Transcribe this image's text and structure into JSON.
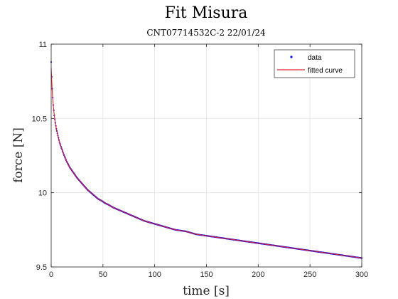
{
  "chart_data": {
    "type": "line",
    "title": "Fit Misura",
    "subtitle": "CNT07714532C-2 22/01/24",
    "xlabel": "time [s]",
    "ylabel": "force [N]",
    "xlim": [
      0,
      300
    ],
    "ylim": [
      9.5,
      11
    ],
    "xticks": [
      0,
      50,
      100,
      150,
      200,
      250,
      300
    ],
    "xtick_labels": [
      "0",
      "50",
      "100",
      "150",
      "200",
      "250",
      "300"
    ],
    "yticks": [
      9.5,
      10,
      10.5,
      11
    ],
    "ytick_labels": [
      "9.5",
      "10",
      "10.5",
      "11"
    ],
    "grid": true,
    "legend_position": "top-right",
    "series": [
      {
        "name": "data",
        "style": "markers",
        "color": "#0000ff",
        "x": [
          0,
          0.5,
          1,
          1.5,
          2,
          3,
          4,
          5,
          6,
          8,
          10,
          12,
          15,
          18,
          20,
          25,
          30,
          35,
          40,
          45,
          50,
          52,
          55,
          60,
          70,
          80,
          90,
          100,
          110,
          120,
          130,
          135,
          140,
          150,
          160,
          170,
          180,
          190,
          200,
          210,
          220,
          230,
          240,
          250,
          260,
          270,
          280,
          290,
          300
        ],
        "y": [
          10.88,
          10.78,
          10.7,
          10.64,
          10.59,
          10.52,
          10.47,
          10.43,
          10.4,
          10.34,
          10.3,
          10.26,
          10.21,
          10.17,
          10.15,
          10.1,
          10.06,
          10.02,
          9.99,
          9.96,
          9.94,
          9.93,
          9.92,
          9.9,
          9.87,
          9.84,
          9.81,
          9.79,
          9.77,
          9.75,
          9.74,
          9.73,
          9.72,
          9.71,
          9.7,
          9.69,
          9.68,
          9.67,
          9.66,
          9.65,
          9.64,
          9.63,
          9.62,
          9.61,
          9.6,
          9.59,
          9.58,
          9.57,
          9.56
        ]
      },
      {
        "name": "fitted curve",
        "style": "line",
        "color": "#d9262e",
        "x": [
          0,
          0.5,
          1,
          1.5,
          2,
          3,
          4,
          5,
          6,
          8,
          10,
          12,
          15,
          18,
          20,
          25,
          30,
          35,
          40,
          45,
          50,
          55,
          60,
          70,
          80,
          90,
          100,
          110,
          120,
          130,
          140,
          150,
          160,
          170,
          180,
          190,
          200,
          210,
          220,
          230,
          240,
          250,
          260,
          270,
          280,
          290,
          300
        ],
        "y": [
          10.84,
          10.76,
          10.69,
          10.63,
          10.59,
          10.52,
          10.47,
          10.43,
          10.4,
          10.34,
          10.3,
          10.26,
          10.21,
          10.17,
          10.15,
          10.1,
          10.06,
          10.02,
          9.99,
          9.96,
          9.94,
          9.92,
          9.9,
          9.87,
          9.84,
          9.81,
          9.79,
          9.77,
          9.75,
          9.74,
          9.72,
          9.71,
          9.7,
          9.69,
          9.68,
          9.67,
          9.66,
          9.65,
          9.64,
          9.63,
          9.62,
          9.61,
          9.6,
          9.59,
          9.58,
          9.57,
          9.56
        ]
      }
    ]
  }
}
